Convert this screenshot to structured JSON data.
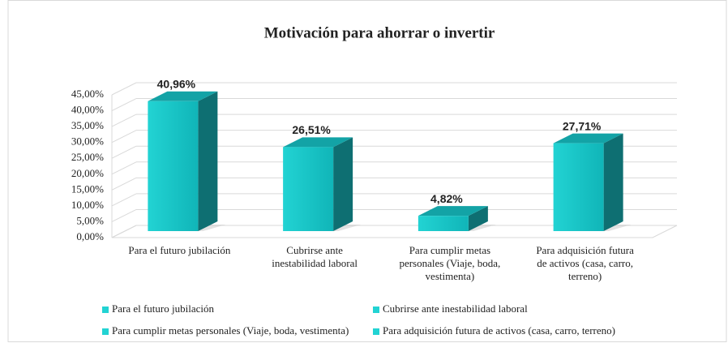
{
  "chart_data": {
    "type": "bar3d",
    "title": "Motivación para ahorrar o invertir",
    "categories": [
      "Para el futuro jubilación",
      "Cubrirse ante inestabilidad laboral",
      "Para cumplir metas personales (Viaje, boda, vestimenta)",
      "Para adquisición futura de activos (casa, carro, terreno)"
    ],
    "values": [
      40.96,
      26.51,
      4.82,
      27.71
    ],
    "value_labels": [
      "40,96%",
      "26,51%",
      "4,82%",
      "27,71%"
    ],
    "color": "#22d3d3",
    "ylim": [
      0,
      45
    ],
    "yticks": [
      {
        "value": 0,
        "label": "0,00%"
      },
      {
        "value": 5,
        "label": "5,00%"
      },
      {
        "value": 10,
        "label": "10,00%"
      },
      {
        "value": 15,
        "label": "15,00%"
      },
      {
        "value": 20,
        "label": "20,00%"
      },
      {
        "value": 25,
        "label": "25,00%"
      },
      {
        "value": 30,
        "label": "30,00%"
      },
      {
        "value": 35,
        "label": "35,00%"
      },
      {
        "value": 40,
        "label": "40,00%"
      },
      {
        "value": 45,
        "label": "45,00%"
      }
    ],
    "grid": true,
    "legend": "bottom"
  }
}
